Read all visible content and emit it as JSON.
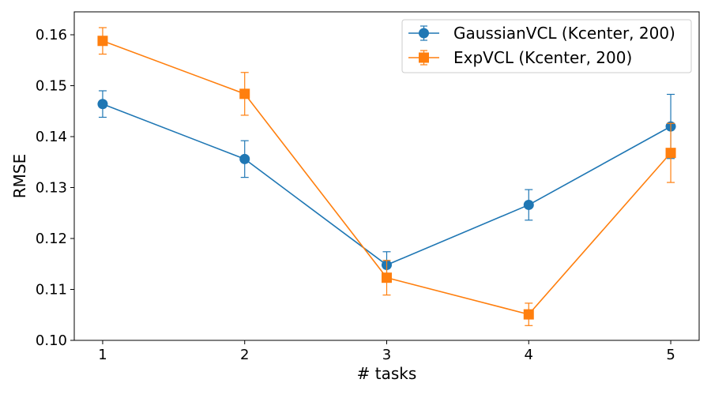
{
  "chart_data": {
    "type": "line",
    "title": "",
    "xlabel": "# tasks",
    "ylabel": "RMSE",
    "x": [
      1,
      2,
      3,
      4,
      5
    ],
    "xticks": [
      "1",
      "2",
      "3",
      "4",
      "5"
    ],
    "xlim": [
      0.8,
      5.2
    ],
    "ylim": [
      0.1,
      0.1645
    ],
    "yticks": [
      "0.10",
      "0.11",
      "0.12",
      "0.13",
      "0.14",
      "0.15",
      "0.16"
    ],
    "ytick_values": [
      0.1,
      0.11,
      0.12,
      0.13,
      0.14,
      0.15,
      0.16
    ],
    "grid": false,
    "legend_position": "upper right",
    "series": [
      {
        "name": "GaussianVCL (Kcenter, 200)",
        "color": "#1f77b4",
        "marker": "circle",
        "values": [
          0.1464,
          0.1356,
          0.1148,
          0.1266,
          0.142
        ],
        "error": [
          0.0026,
          0.0036,
          0.0026,
          0.003,
          0.0063
        ]
      },
      {
        "name": "ExpVCL (Kcenter, 200)",
        "color": "#ff7f0e",
        "marker": "square",
        "values": [
          0.1588,
          0.1484,
          0.1123,
          0.1051,
          0.1368
        ],
        "error": [
          0.0026,
          0.0042,
          0.0034,
          0.0022,
          0.0058
        ]
      }
    ]
  }
}
